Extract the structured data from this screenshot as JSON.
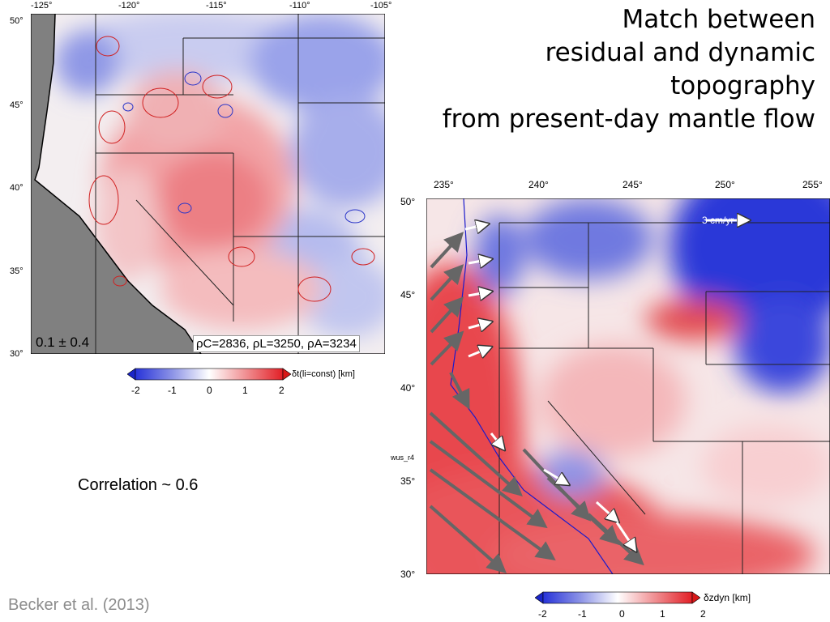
{
  "slide": {
    "title_lines": [
      "Match between",
      "residual and dynamic",
      "topography",
      "from present-day mantle flow"
    ],
    "correlation": "Correlation ~ 0.6",
    "citation": "Becker et al. (2013)"
  },
  "left_map": {
    "lon_ticks": [
      "-125°",
      "-120°",
      "-115°",
      "-110°",
      "-105°"
    ],
    "lat_ticks": [
      "50°",
      "45°",
      "40°",
      "35°",
      "30°"
    ],
    "stat_label": "0.1 ± 0.4",
    "density_label": "ρC=2836, ρL=3250, ρA=3234",
    "colorbar": {
      "ticks": [
        "-2",
        "-1",
        "0",
        "1",
        "2"
      ],
      "label": "δt(li=const) [km]"
    }
  },
  "right_map": {
    "lon_ticks": [
      "235°",
      "240°",
      "245°",
      "250°",
      "255°"
    ],
    "lat_ticks": [
      "50°",
      "45°",
      "40°",
      "35°",
      "30°"
    ],
    "side_label": "wus_r4",
    "velocity_scale": "3 cm/yr",
    "colorbar": {
      "ticks": [
        "-2",
        "-1",
        "0",
        "1",
        "2"
      ],
      "label": "δzdyn [km]"
    }
  },
  "colors": {
    "blue": "#2733d9",
    "red": "#e21f26",
    "ocean": "#808080"
  }
}
